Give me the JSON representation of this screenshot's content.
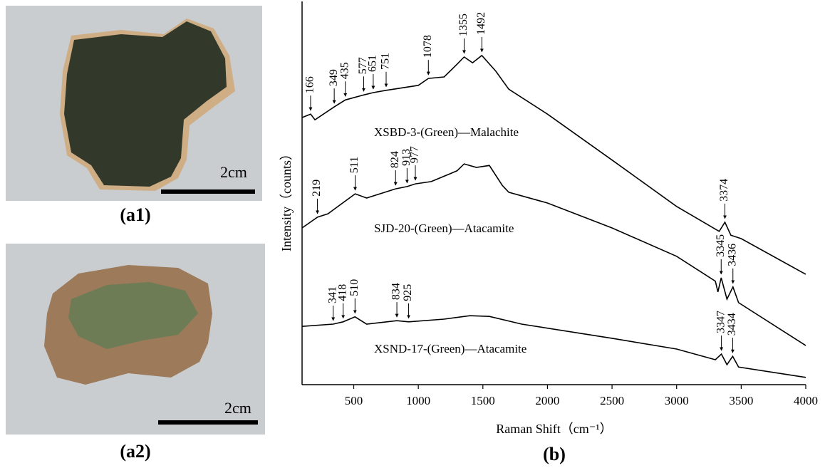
{
  "panels": {
    "a1": {
      "scale_label": "2cm",
      "caption": "(a1)"
    },
    "a2": {
      "scale_label": "2cm",
      "caption": "(a2)"
    }
  },
  "chart_data": {
    "type": "line",
    "caption": "(b)",
    "x_label": "Raman Shift（cm⁻¹）",
    "y_label": "Intensity（counts）",
    "xlim": [
      100,
      4000
    ],
    "ylim": [
      0,
      100
    ],
    "xticks": [
      500,
      1000,
      1500,
      2000,
      2500,
      3000,
      3500,
      4000
    ],
    "series": [
      {
        "name": "XSBD-3-(Green)—Malachite",
        "color": "#000000",
        "x": [
          100,
          166,
          200,
          350,
          435,
          577,
          651,
          751,
          1000,
          1078,
          1200,
          1300,
          1355,
          1420,
          1492,
          1600,
          1700,
          2000,
          2500,
          3000,
          3330,
          3374,
          3420,
          3500,
          4000
        ],
        "values": [
          69.7,
          70.6,
          69.1,
          72.5,
          74.3,
          75.6,
          76.2,
          76.8,
          78.1,
          79.9,
          80.3,
          83.6,
          85.5,
          84.0,
          85.9,
          81.8,
          77.1,
          70.6,
          58.6,
          46.5,
          40.0,
          42.4,
          39.0,
          38.1,
          28.8
        ],
        "peaks": [
          166,
          349,
          435,
          577,
          651,
          751,
          1078,
          1355,
          1492,
          3374
        ]
      },
      {
        "name": "SJD-20-(Green)—Atacamite",
        "color": "#000000",
        "x": [
          100,
          219,
          300,
          511,
          600,
          824,
          913,
          977,
          1100,
          1300,
          1355,
          1450,
          1550,
          1650,
          1700,
          2000,
          2500,
          3000,
          3300,
          3320,
          3345,
          3390,
          3436,
          3480,
          4000
        ],
        "values": [
          40.9,
          43.7,
          44.6,
          49.8,
          48.7,
          51.1,
          51.7,
          52.4,
          53.0,
          55.8,
          57.6,
          56.7,
          57.2,
          52.0,
          50.2,
          47.4,
          40.9,
          33.5,
          27.0,
          24.2,
          27.9,
          22.3,
          25.5,
          21.4,
          10.2
        ],
        "peaks": [
          219,
          511,
          824,
          913,
          977,
          3345,
          3436
        ]
      },
      {
        "name": "XSND-17-(Green)—Atacamite",
        "color": "#000000",
        "x": [
          100,
          341,
          418,
          510,
          600,
          834,
          925,
          1200,
          1400,
          1550,
          1800,
          2500,
          3000,
          3300,
          3347,
          3390,
          3434,
          3480,
          4000
        ],
        "values": [
          15.2,
          15.8,
          16.4,
          17.7,
          15.8,
          16.7,
          16.4,
          17.1,
          18.0,
          17.8,
          15.8,
          12.1,
          9.3,
          6.5,
          8.0,
          5.2,
          7.4,
          4.6,
          1.9
        ],
        "peaks": [
          341,
          418,
          510,
          834,
          925,
          3347,
          3434
        ]
      }
    ]
  }
}
